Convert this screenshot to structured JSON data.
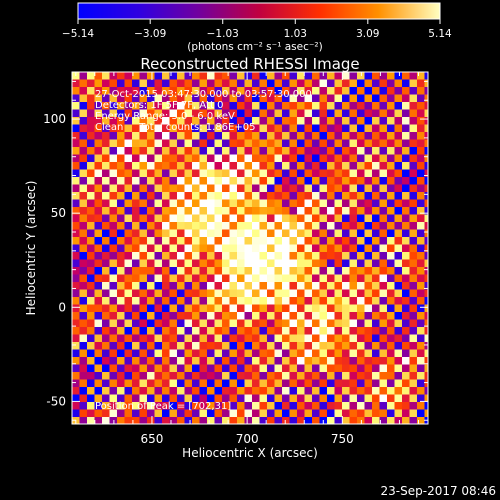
{
  "colorbar": {
    "ticks": [
      "−5.14",
      "−3.09",
      "−1.03",
      "1.03",
      "3.09",
      "5.14"
    ],
    "tick_values": [
      -5.14,
      -3.09,
      -1.03,
      1.03,
      3.09,
      5.14
    ],
    "range": [
      -5.14,
      5.14
    ],
    "label": "(photons cm⁻² s⁻¹ asec⁻²)"
  },
  "chart_data": {
    "type": "heatmap",
    "title": "Reconstructed RHESSI Image",
    "xlabel": "Heliocentric X (arcsec)",
    "ylabel": "Heliocentric Y (arcsec)",
    "xlim": [
      608,
      795
    ],
    "ylim": [
      -62,
      125
    ],
    "xticks": [
      650,
      700,
      750
    ],
    "yticks": [
      -50,
      0,
      50,
      100
    ],
    "peak": [
      702,
      31
    ],
    "colormap": [
      "#0000ff",
      "#5a00c8",
      "#d0005a",
      "#ff4000",
      "#ff9a00",
      "#ffff80",
      "#ffffff"
    ],
    "annotations": [
      "27-Oct-2015 03:47:30.000 to 03:57:30.000",
      "Detectors: 1F 5F 7F, Att 0",
      "Energy Range: 3.0 - 6.0 keV",
      "Clean     Total counts: 1.86E+05"
    ],
    "peak_label": "Position of Peak = [702,31]"
  },
  "footer_date": "23-Sep-2017 08:46"
}
